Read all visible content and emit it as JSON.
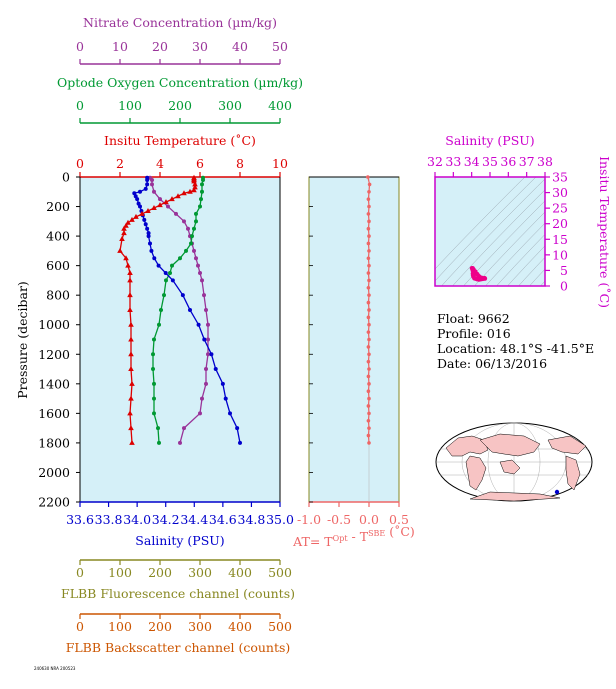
{
  "colors": {
    "temperature": "#dd0000",
    "salinity": "#0000cc",
    "oxygen": "#009933",
    "nitrate": "#993399",
    "fluorescence": "#888822",
    "backscatter": "#cc5500",
    "delta_t": "#ee6666",
    "plot_bg": "#d5f0f8",
    "ts_point": "#ee0088",
    "ts_axis": "#cc00cc"
  },
  "float_info": {
    "float": "Float:  9662",
    "profile": "Profile:  016",
    "location": "Location:  48.1°S  -41.5°E",
    "date": "Date:  06/13/2016"
  },
  "footer": "240630 NRA 200523",
  "map_icon": "world-map-icon",
  "chart_data": [
    {
      "type": "line",
      "title": "",
      "ylabel": "Pressure (decibar)",
      "ylim": [
        2200,
        0
      ],
      "yticks": [
        0,
        200,
        400,
        600,
        800,
        1000,
        1200,
        1400,
        1600,
        1800,
        2000,
        2200
      ],
      "grid": false,
      "axes": {
        "temperature": {
          "label": "Insitu Temperature (˚C)",
          "ticks": [
            "0",
            "2",
            "4",
            "6",
            "8",
            "10"
          ],
          "range": [
            0,
            10
          ]
        },
        "oxygen": {
          "label": "Optode Oxygen Concentration (µm/kg)",
          "ticks": [
            "0",
            "100",
            "200",
            "300",
            "400"
          ],
          "range": [
            0,
            400
          ]
        },
        "nitrate": {
          "label": "Nitrate Concentration (µm/kg)",
          "ticks": [
            "0",
            "10",
            "20",
            "30",
            "40",
            "50"
          ],
          "range": [
            0,
            50
          ]
        },
        "salinity": {
          "label": "Salinity (PSU)",
          "ticks": [
            "33.6",
            "33.8",
            "34.0",
            "34.2",
            "34.4",
            "34.6",
            "34.8",
            "35.0"
          ],
          "range": [
            33.6,
            35.0
          ]
        },
        "fluorescence": {
          "label": "FLBB Fluorescence channel (counts)",
          "ticks": [
            "0",
            "100",
            "200",
            "300",
            "400",
            "500"
          ],
          "range": [
            0,
            500
          ]
        },
        "backscatter": {
          "label": "FLBB Backscatter channel (counts)",
          "ticks": [
            "0",
            "100",
            "200",
            "300",
            "400",
            "500"
          ],
          "range": [
            0,
            500
          ]
        }
      },
      "series": [
        {
          "axis": "temperature",
          "pressure": [
            5,
            10,
            20,
            30,
            50,
            70,
            90,
            100,
            110,
            130,
            150,
            170,
            190,
            210,
            230,
            250,
            270,
            290,
            310,
            330,
            350,
            380,
            420,
            500,
            550,
            600,
            650,
            700,
            800,
            900,
            1000,
            1100,
            1200,
            1300,
            1400,
            1500,
            1600,
            1700,
            1800
          ],
          "values": [
            5.7,
            5.7,
            5.7,
            5.7,
            5.75,
            5.75,
            5.7,
            5.5,
            5.2,
            4.9,
            4.6,
            4.3,
            4.0,
            3.7,
            3.4,
            3.1,
            2.8,
            2.6,
            2.4,
            2.3,
            2.2,
            2.2,
            2.1,
            2.0,
            2.3,
            2.4,
            2.5,
            2.5,
            2.5,
            2.5,
            2.55,
            2.55,
            2.55,
            2.55,
            2.6,
            2.55,
            2.5,
            2.55,
            2.6
          ]
        },
        {
          "axis": "salinity",
          "pressure": [
            5,
            20,
            50,
            80,
            100,
            110,
            130,
            150,
            180,
            200,
            230,
            260,
            290,
            320,
            350,
            380,
            400,
            450,
            500,
            550,
            600,
            650,
            700,
            800,
            900,
            1000,
            1100,
            1200,
            1300,
            1400,
            1500,
            1600,
            1700,
            1800
          ],
          "values": [
            34.07,
            34.07,
            34.07,
            34.06,
            34.02,
            33.98,
            33.99,
            34.0,
            34.01,
            34.02,
            34.03,
            34.04,
            34.05,
            34.06,
            34.07,
            34.08,
            34.08,
            34.09,
            34.1,
            34.12,
            34.15,
            34.2,
            34.25,
            34.32,
            34.37,
            34.43,
            34.47,
            34.52,
            34.55,
            34.6,
            34.62,
            34.65,
            34.7,
            34.72
          ]
        },
        {
          "axis": "oxygen",
          "pressure": [
            5,
            20,
            50,
            100,
            150,
            200,
            250,
            300,
            350,
            400,
            450,
            500,
            550,
            600,
            650,
            700,
            800,
            900,
            1000,
            1100,
            1200,
            1300,
            1400,
            1500,
            1600,
            1700,
            1800
          ],
          "values": [
            246,
            246,
            244,
            244,
            242,
            240,
            232,
            232,
            228,
            224,
            222,
            212,
            200,
            184,
            180,
            172,
            168,
            162,
            158,
            148,
            146,
            146,
            148,
            148,
            148,
            156,
            158
          ]
        },
        {
          "axis": "nitrate",
          "pressure": [
            5,
            20,
            50,
            100,
            150,
            200,
            250,
            300,
            350,
            400,
            450,
            500,
            550,
            600,
            650,
            700,
            800,
            900,
            1000,
            1100,
            1200,
            1300,
            1400,
            1500,
            1600,
            1700,
            1800
          ],
          "values": [
            17.5,
            18,
            18,
            18.5,
            20,
            22,
            24,
            26,
            27,
            27.5,
            28,
            28.5,
            29,
            29.5,
            30,
            30.5,
            31,
            31.5,
            32,
            32,
            32,
            31.5,
            31.5,
            30.5,
            30,
            26,
            25
          ]
        },
        {
          "axis": "delta_t",
          "pressure": [
            0,
            50,
            100,
            150,
            200,
            250,
            300,
            350,
            400,
            450,
            500,
            550,
            600,
            650,
            700,
            750,
            800,
            850,
            900,
            950,
            1000,
            1050,
            1100,
            1150,
            1200,
            1250,
            1300,
            1350,
            1400,
            1450,
            1500,
            1550,
            1600,
            1650,
            1700,
            1750,
            1800
          ],
          "values": [
            -0.02,
            0.01,
            0.0,
            -0.01,
            0.0,
            -0.01,
            0.0,
            -0.01,
            0.0,
            -0.01,
            0.0,
            -0.01,
            0.0,
            -0.01,
            0.0,
            -0.01,
            0.0,
            -0.01,
            0.0,
            -0.01,
            0.0,
            -0.01,
            0.0,
            -0.01,
            0.0,
            -0.01,
            0.0,
            -0.01,
            0.0,
            -0.01,
            0.0,
            -0.01,
            0.0,
            -0.01,
            0.0,
            -0.01,
            0.0
          ]
        }
      ]
    },
    {
      "type": "line",
      "title": "",
      "xlabel": "AT= T^Opt - T^SBE (˚C)",
      "xlim": [
        -1.0,
        0.5
      ],
      "xticks": [
        "-1.0",
        "-0.5",
        "0.0",
        "0.5"
      ],
      "ylim": [
        2200,
        0
      ]
    },
    {
      "type": "scatter",
      "title": "",
      "xlabel": "Salinity (PSU)",
      "ylabel": "Insitu Temperature (˚C)",
      "xlim": [
        32,
        38
      ],
      "ylim": [
        0,
        35
      ],
      "xticks": [
        "32",
        "33",
        "34",
        "35",
        "36",
        "37",
        "38"
      ],
      "yticks": [
        "0",
        "5",
        "10",
        "15",
        "20",
        "25",
        "30",
        "35"
      ],
      "x": [
        34.02,
        34.05,
        34.1,
        34.2,
        34.3,
        34.38,
        34.45,
        34.55,
        34.7,
        34.72,
        34.6,
        34.5,
        34.4,
        34.3,
        34.2,
        34.15,
        34.1,
        34.08,
        34.07,
        34.06
      ],
      "y": [
        5.7,
        5.7,
        5.3,
        4.6,
        3.8,
        3.2,
        2.8,
        2.6,
        2.5,
        2.4,
        2.3,
        2.2,
        2.1,
        2.2,
        2.4,
        2.5,
        3.0,
        3.5,
        4.0,
        5.0
      ]
    }
  ]
}
